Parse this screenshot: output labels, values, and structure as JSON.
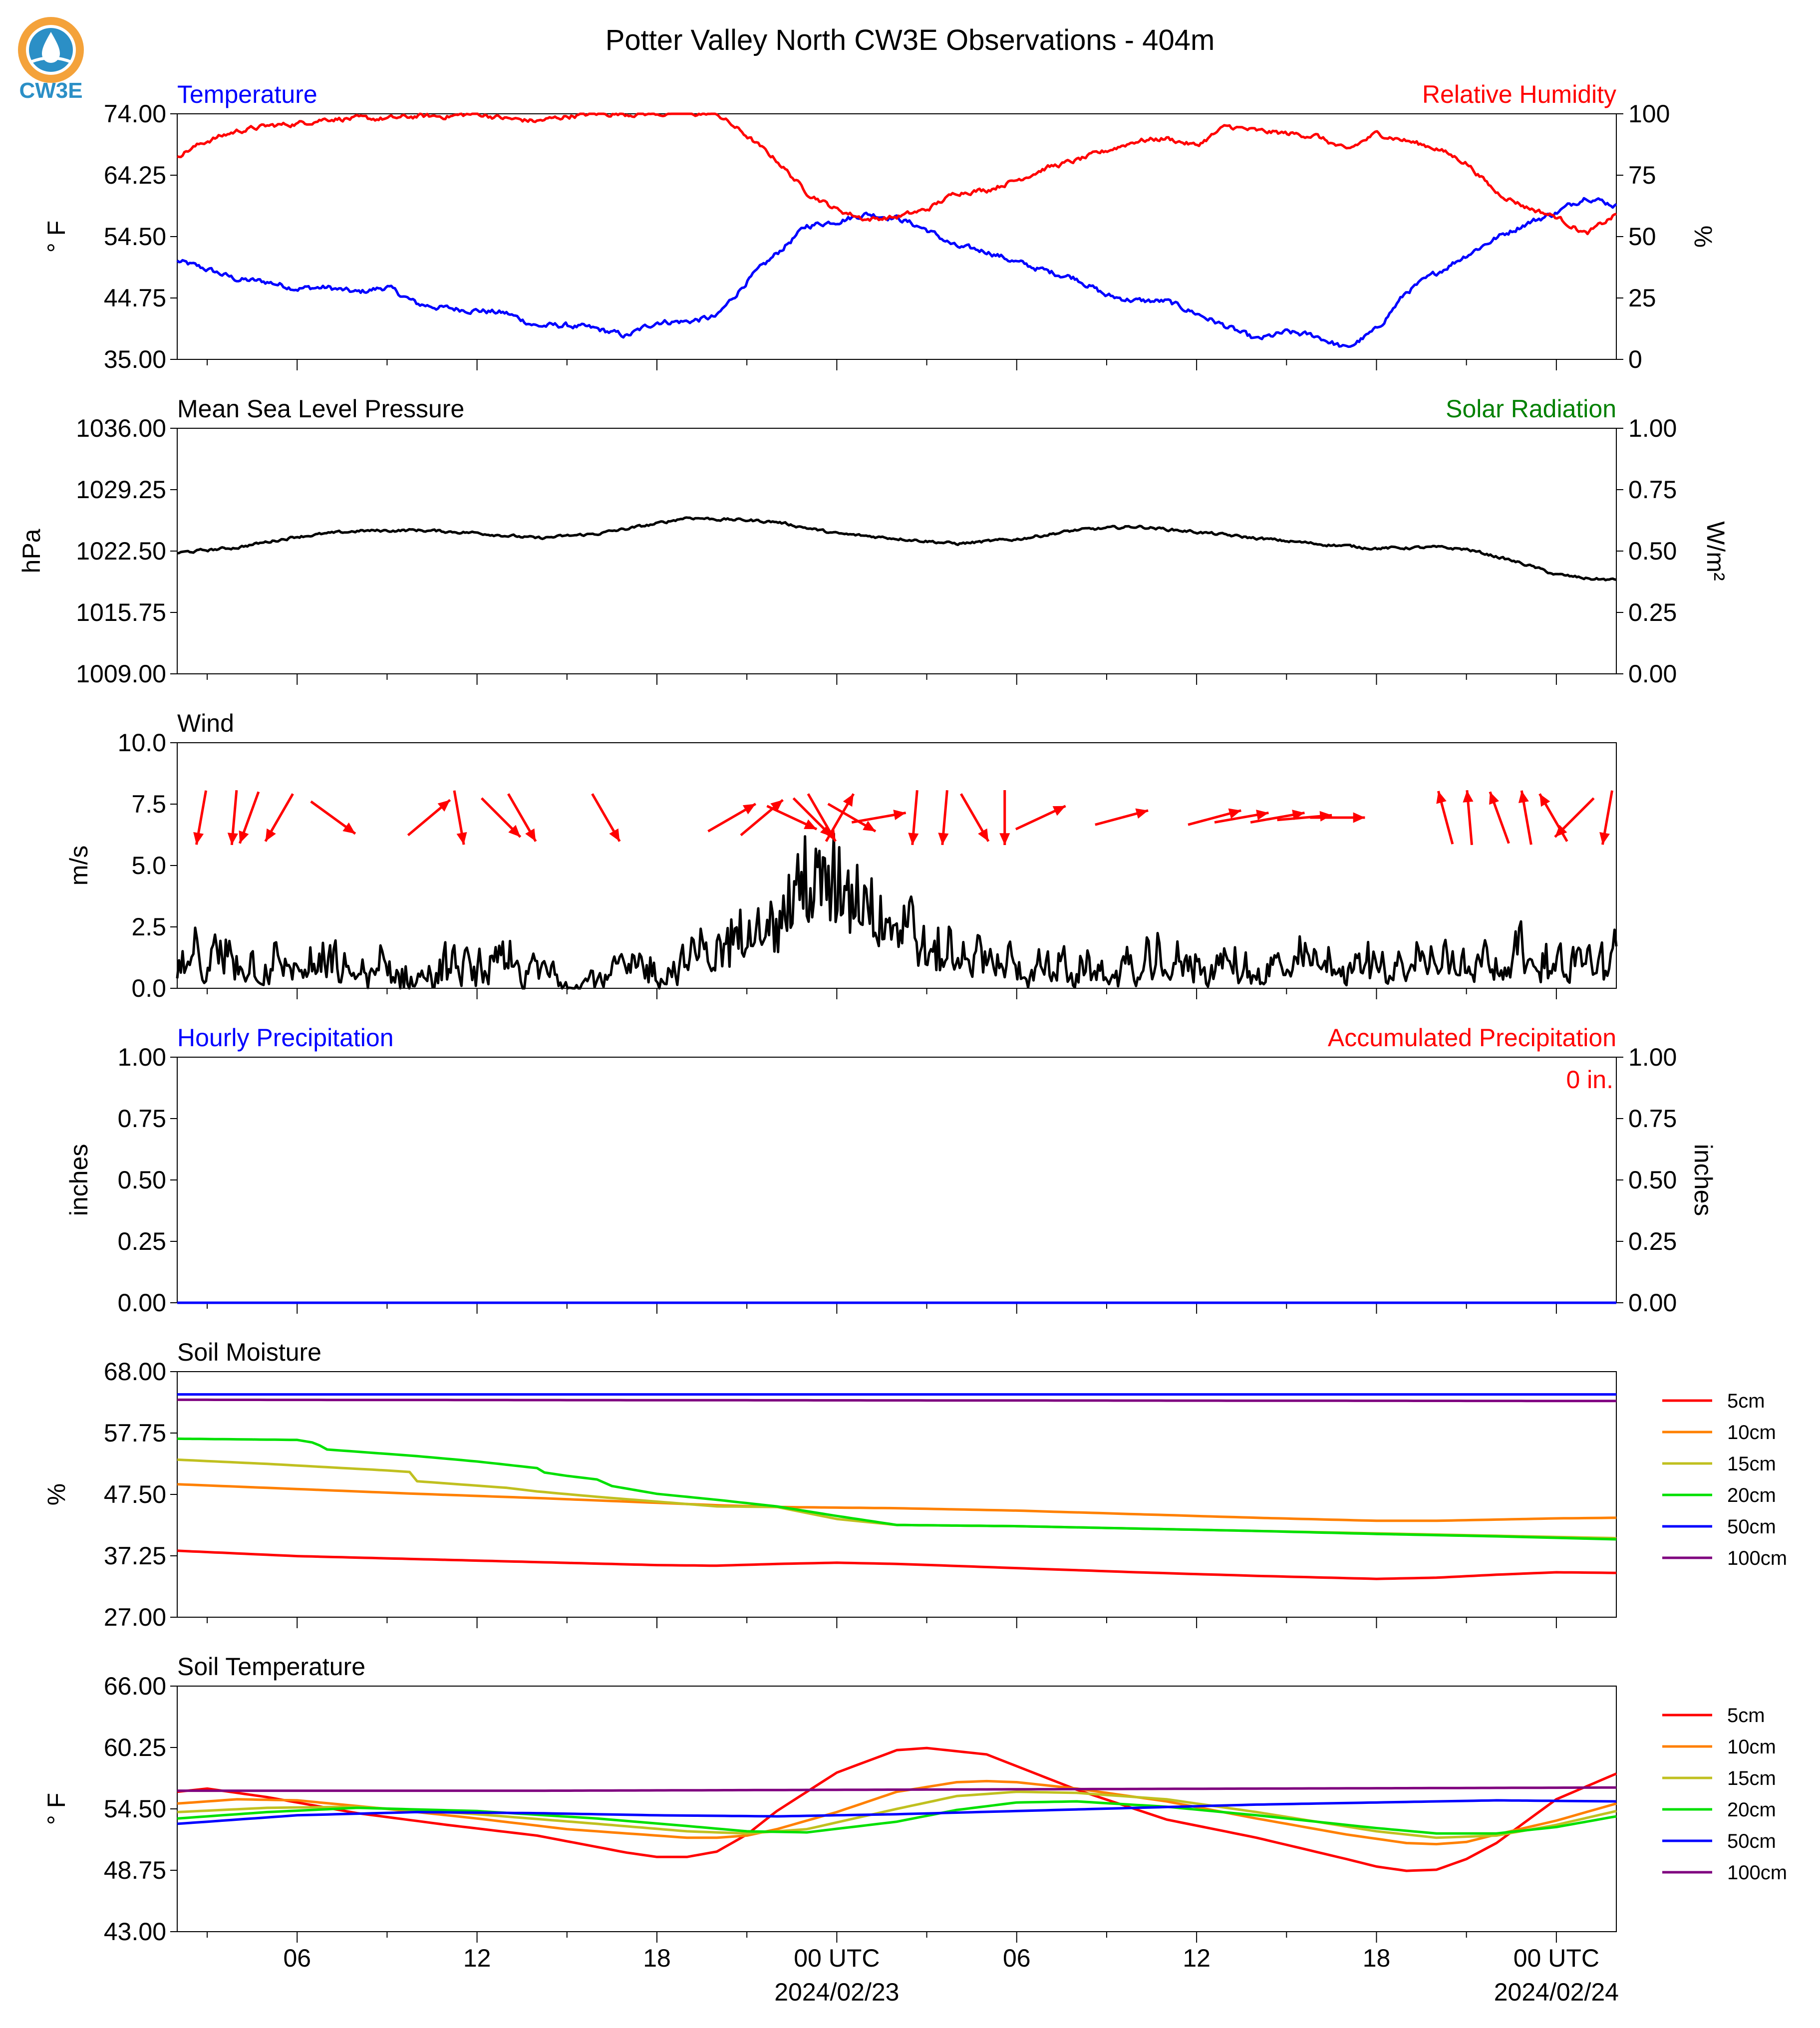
{
  "title": "Potter Valley North CW3E Observations - 404m",
  "logo": {
    "text": "CW3E",
    "colors": {
      "ring": "#f4a23a",
      "drop": "#2b8fc6",
      "text": "#2b8fc6"
    }
  },
  "x_axis": {
    "start": "2024-02-22 02:00 UTC",
    "end": "2024-02-24 01:00 UTC",
    "tick_labels": [
      "06",
      "12",
      "18",
      "00 UTC",
      "06",
      "12",
      "18",
      "00 UTC"
    ],
    "date_labels": [
      "2024/02/23",
      "2024/02/24"
    ]
  },
  "chart_data": [
    {
      "type": "line",
      "name": "temperature-humidity",
      "left_title": "Temperature",
      "right_title": "Relative Humidity",
      "left_ylabel": "° F",
      "right_ylabel": "%",
      "left_ticks": [
        "74.00",
        "64.25",
        "54.50",
        "44.75",
        "35.00"
      ],
      "right_ticks": [
        "100",
        "75",
        "50",
        "25",
        "0"
      ],
      "ylim": [
        35,
        74
      ],
      "ylim_right": [
        0,
        100
      ],
      "series": [
        {
          "axis": "left",
          "color": "#0000ff",
          "hours": [
            0,
            1,
            2,
            3,
            4,
            5,
            6,
            7,
            8,
            9,
            10,
            11,
            12,
            13,
            14,
            15,
            16,
            17,
            18,
            19,
            20,
            21,
            22,
            23,
            24,
            25,
            26,
            27,
            28,
            29,
            30,
            31,
            32,
            33,
            34,
            35,
            36,
            37,
            38,
            39,
            40,
            41,
            42,
            43,
            44,
            45,
            46,
            47,
            48
          ],
          "values": [
            50.6,
            49.3,
            47.7,
            47.3,
            46.3,
            46.4,
            45.6,
            46.5,
            43.8,
            43.1,
            42.8,
            42.3,
            40.3,
            40.4,
            39.8,
            38.7,
            41.0,
            41.0,
            41.8,
            47.4,
            51.8,
            56.2,
            57.0,
            58.1,
            57.5,
            55.6,
            52.8,
            52.2,
            50.4,
            49.0,
            47.9,
            45.1,
            44.3,
            44.2,
            42.3,
            40.2,
            38.1,
            39.3,
            38.7,
            36.7,
            39.7,
            45.7,
            48.7,
            51.6,
            54.3,
            56.6,
            58.3,
            60.9,
            59.4
          ]
        },
        {
          "axis": "right",
          "color": "#ff0000",
          "hours": [
            0,
            1,
            2,
            3,
            4,
            5,
            6,
            7,
            8,
            9,
            10,
            11,
            12,
            13,
            14,
            15,
            16,
            17,
            18,
            19,
            20,
            21,
            22,
            23,
            24,
            25,
            26,
            27,
            28,
            29,
            30,
            31,
            32,
            33,
            34,
            35,
            36,
            37,
            38,
            39,
            40,
            41,
            42,
            43,
            44,
            45,
            46,
            47,
            48
          ],
          "values": [
            83,
            89,
            93,
            95,
            96,
            98,
            98,
            98,
            99,
            99,
            100,
            98,
            97,
            99,
            100,
            100,
            100,
            100,
            100,
            91,
            81,
            68,
            61,
            57,
            58,
            61,
            68,
            69,
            73,
            78,
            81,
            85,
            89,
            90,
            87,
            95,
            93,
            92,
            91,
            85,
            92,
            89,
            86,
            80,
            68,
            62,
            58,
            51,
            59
          ]
        }
      ]
    },
    {
      "type": "line",
      "name": "pressure-solar",
      "left_title": "Mean Sea Level Pressure",
      "right_title": "Solar Radiation",
      "left_ylabel": "hPa",
      "right_ylabel": "W/m²",
      "left_ticks": [
        "1036.00",
        "1029.25",
        "1022.50",
        "1015.75",
        "1009.00"
      ],
      "right_ticks": [
        "1.00",
        "0.75",
        "0.50",
        "0.25",
        "0.00"
      ],
      "ylim": [
        1009,
        1036
      ],
      "ylim_right": [
        0,
        1
      ],
      "series": [
        {
          "axis": "left",
          "color": "#000000",
          "hours": [
            0,
            2,
            4,
            6,
            8,
            10,
            12,
            14,
            16,
            17,
            18,
            19,
            20,
            22,
            24,
            26,
            28,
            30,
            32,
            34,
            36,
            38,
            40,
            42,
            43,
            44,
            45,
            46,
            47,
            48
          ],
          "values": [
            1022.3,
            1022.9,
            1024.1,
            1024.7,
            1024.8,
            1024.5,
            1023.9,
            1024.4,
            1025.5,
            1026.2,
            1026.0,
            1025.9,
            1025.7,
            1024.4,
            1023.9,
            1023.3,
            1023.8,
            1024.8,
            1025.2,
            1024.6,
            1023.9,
            1023.3,
            1022.8,
            1022.9,
            1022.7,
            1021.9,
            1021.0,
            1019.9,
            1019.5,
            1019.3
          ]
        }
      ]
    },
    {
      "type": "line",
      "name": "wind",
      "left_title": "Wind",
      "left_ylabel": "m/s",
      "left_ticks": [
        "10.0",
        "7.5",
        "5.0",
        "2.5",
        "0.0"
      ],
      "ylim": [
        0,
        10
      ],
      "series": [
        {
          "axis": "left",
          "color": "#000000",
          "hours": [
            0,
            1,
            2,
            3,
            4,
            5,
            6,
            7,
            8,
            9,
            10,
            11,
            12,
            13,
            14,
            15,
            16,
            17,
            18,
            19,
            20,
            21,
            22,
            23,
            24,
            25,
            26,
            27,
            28,
            29,
            30,
            31,
            32,
            33,
            34,
            35,
            36,
            37,
            38,
            39,
            40,
            41,
            42,
            43,
            44,
            45,
            46,
            47,
            48
          ],
          "values": [
            0.8,
            1.0,
            1.1,
            0.9,
            0.8,
            0.7,
            0.6,
            0.6,
            0.5,
            0.6,
            0.8,
            0.7,
            0.6,
            0.6,
            0.5,
            0.6,
            0.8,
            1.0,
            1.6,
            2.0,
            3.2,
            4.2,
            4.0,
            3.6,
            2.6,
            1.5,
            1.2,
            1.0,
            0.9,
            0.8,
            0.7,
            0.6,
            0.7,
            0.9,
            1.0,
            0.9,
            0.7,
            0.8,
            0.9,
            0.9,
            0.9,
            1.0,
            1.1,
            1.2,
            1.2,
            1.2,
            1.1,
            1.0,
            0.8
          ]
        }
      ],
      "wind_arrows": {
        "color": "#ff0000",
        "note": "arrow points downwind; angle in degrees clockwise from east (screen coordinates)",
        "hours": [
          0.8,
          1.9,
          2.4,
          3.4,
          5.2,
          8.4,
          9.4,
          10.8,
          11.5,
          14.3,
          18.5,
          19.5,
          20.5,
          21.2,
          21.5,
          22.1,
          22.5,
          23.4,
          24.6,
          25.6,
          26.6,
          27.6,
          28.8,
          31.5,
          34.6,
          35.5,
          36.7,
          37.6,
          38.7,
          42.3,
          43.1,
          44.1,
          45.0,
          45.9,
          46.6,
          47.7
        ],
        "angles": [
          100,
          95,
          110,
          120,
          36,
          -40,
          80,
          45,
          60,
          60,
          -30,
          -40,
          25,
          45,
          60,
          -60,
          30,
          -10,
          95,
          95,
          60,
          90,
          -25,
          -15,
          -15,
          -10,
          -10,
          -5,
          0,
          -105,
          -95,
          -110,
          -100,
          -120,
          135,
          100
        ]
      }
    },
    {
      "type": "line",
      "name": "precipitation",
      "left_title": "Hourly Precipitation",
      "right_title": "Accumulated Precipitation",
      "annotation": "0 in.",
      "left_ylabel": "inches",
      "right_ylabel": "inches",
      "left_ticks": [
        "1.00",
        "0.75",
        "0.50",
        "0.25",
        "0.00"
      ],
      "right_ticks": [
        "1.00",
        "0.75",
        "0.50",
        "0.25",
        "0.00"
      ],
      "ylim": [
        0,
        1
      ],
      "ylim_right": [
        0,
        1
      ],
      "series": [
        {
          "axis": "right",
          "color": "#ff0000",
          "hours": [
            0,
            48
          ],
          "values": [
            0,
            0
          ]
        },
        {
          "axis": "left",
          "color": "#0000ff",
          "hours": [
            0,
            48
          ],
          "values": [
            0,
            0
          ]
        }
      ]
    },
    {
      "type": "line",
      "name": "soil-moisture",
      "left_title": "Soil Moisture",
      "left_ylabel": "%",
      "left_ticks": [
        "68.00",
        "57.75",
        "47.50",
        "37.25",
        "27.00"
      ],
      "ylim": [
        27,
        68
      ],
      "legend_position": "right",
      "series": [
        {
          "name": "5cm",
          "color": "#ff0000",
          "hours": [
            0,
            4,
            8,
            12,
            16,
            18,
            20,
            22,
            24,
            28,
            32,
            36,
            40,
            42,
            44,
            46,
            48
          ],
          "values": [
            38.1,
            37.2,
            36.7,
            36.2,
            35.7,
            35.6,
            35.9,
            36.1,
            35.9,
            35.2,
            34.5,
            33.9,
            33.4,
            33.6,
            34.1,
            34.5,
            34.4
          ]
        },
        {
          "name": "10cm",
          "color": "#ff8000",
          "hours": [
            0,
            4,
            8,
            12,
            16,
            18,
            20,
            22,
            24,
            28,
            32,
            36,
            40,
            42,
            44,
            46,
            48
          ],
          "values": [
            49.2,
            48.4,
            47.6,
            46.9,
            46.1,
            45.7,
            45.4,
            45.3,
            45.2,
            44.8,
            44.2,
            43.6,
            43.1,
            43.1,
            43.3,
            43.5,
            43.6
          ]
        },
        {
          "name": "15cm",
          "color": "#c0c020",
          "hours": [
            0,
            3,
            7,
            7.9,
            8,
            11,
            12,
            14,
            16,
            18,
            20,
            22,
            24,
            28,
            32,
            36,
            40,
            44,
            48
          ],
          "values": [
            53.3,
            52.6,
            51.5,
            51.2,
            49.7,
            48.6,
            48.0,
            47.1,
            46.3,
            45.5,
            45.4,
            43.4,
            42.4,
            42.2,
            41.8,
            41.4,
            41.0,
            40.6,
            40.2
          ]
        },
        {
          "name": "20cm",
          "color": "#00e000",
          "hours": [
            0,
            4,
            4.6,
            5,
            8,
            10,
            12,
            12.2,
            13,
            14,
            14.5,
            16,
            18,
            20,
            22,
            24,
            28,
            32,
            36,
            40,
            44,
            48
          ],
          "values": [
            56.8,
            56.6,
            56.1,
            55.0,
            53.9,
            53.0,
            51.9,
            51.2,
            50.6,
            50.0,
            48.9,
            47.6,
            46.6,
            45.5,
            43.9,
            42.4,
            42.2,
            41.8,
            41.4,
            40.9,
            40.5,
            40.0
          ]
        },
        {
          "name": "50cm",
          "color": "#0000ff",
          "hours": [
            0,
            24,
            48
          ],
          "values": [
            64.2,
            64.2,
            64.2
          ]
        },
        {
          "name": "100cm",
          "color": "#7f007f",
          "hours": [
            0,
            24,
            48
          ],
          "values": [
            63.3,
            63.2,
            63.1
          ]
        }
      ]
    },
    {
      "type": "line",
      "name": "soil-temperature",
      "left_title": "Soil Temperature",
      "left_ylabel": "° F",
      "left_ticks": [
        "66.00",
        "60.25",
        "54.50",
        "48.75",
        "43.00"
      ],
      "ylim": [
        43,
        66
      ],
      "legend_position": "right",
      "series": [
        {
          "name": "5cm",
          "color": "#ff0000",
          "hours": [
            0,
            1,
            3,
            6,
            9,
            12,
            15,
            16,
            17,
            18,
            19,
            20,
            22,
            24,
            25,
            27,
            30,
            33,
            36,
            39,
            40,
            41,
            42,
            43,
            44,
            46,
            48
          ],
          "values": [
            56.1,
            56.4,
            55.6,
            54.1,
            53.0,
            52.0,
            50.4,
            50.0,
            50.0,
            50.5,
            52.1,
            54.3,
            57.9,
            60.0,
            60.2,
            59.6,
            56.3,
            53.5,
            51.8,
            49.8,
            49.1,
            48.7,
            48.8,
            49.8,
            51.3,
            55.4,
            57.8
          ]
        },
        {
          "name": "10cm",
          "color": "#ff8000",
          "hours": [
            0,
            2,
            4,
            7,
            10,
            13,
            16,
            17,
            18,
            19,
            20,
            22,
            24,
            26,
            27,
            28,
            30,
            33,
            36,
            39,
            41,
            42,
            43,
            44,
            46,
            48
          ],
          "values": [
            55.0,
            55.4,
            55.3,
            54.5,
            53.6,
            52.6,
            52.0,
            51.8,
            51.8,
            52.0,
            52.6,
            54.2,
            56.1,
            57.0,
            57.1,
            57.0,
            56.4,
            55.2,
            53.6,
            52.1,
            51.3,
            51.2,
            51.4,
            52.1,
            53.4,
            55.0
          ]
        },
        {
          "name": "15cm",
          "color": "#c0c020",
          "hours": [
            0,
            3,
            6,
            10,
            14,
            17,
            19,
            21,
            24,
            26,
            28,
            30,
            33,
            36,
            40,
            42,
            44,
            46,
            48
          ],
          "values": [
            54.2,
            54.6,
            54.7,
            54.0,
            53.1,
            52.4,
            52.2,
            52.6,
            54.5,
            55.7,
            56.1,
            56.0,
            55.4,
            54.2,
            52.4,
            51.8,
            52.0,
            53.0,
            54.3
          ]
        },
        {
          "name": "20cm",
          "color": "#00e000",
          "hours": [
            0,
            3,
            6,
            10,
            14,
            17,
            19,
            21,
            24,
            26,
            28,
            30,
            33,
            36,
            40,
            42,
            44,
            46,
            48
          ],
          "values": [
            53.6,
            54.2,
            54.6,
            54.3,
            53.6,
            52.9,
            52.4,
            52.3,
            53.3,
            54.4,
            55.1,
            55.2,
            54.7,
            53.9,
            52.7,
            52.2,
            52.2,
            52.8,
            53.8
          ]
        },
        {
          "name": "50cm",
          "color": "#0000ff",
          "hours": [
            0,
            4,
            8,
            12,
            16,
            20,
            24,
            28,
            32,
            36,
            40,
            44,
            48
          ],
          "values": [
            53.1,
            53.9,
            54.2,
            54.1,
            53.9,
            53.8,
            54.0,
            54.3,
            54.6,
            54.9,
            55.1,
            55.3,
            55.2
          ]
        },
        {
          "name": "100cm",
          "color": "#7f007f",
          "hours": [
            0,
            12,
            24,
            36,
            48
          ],
          "values": [
            56.2,
            56.2,
            56.3,
            56.4,
            56.5
          ]
        }
      ]
    }
  ]
}
